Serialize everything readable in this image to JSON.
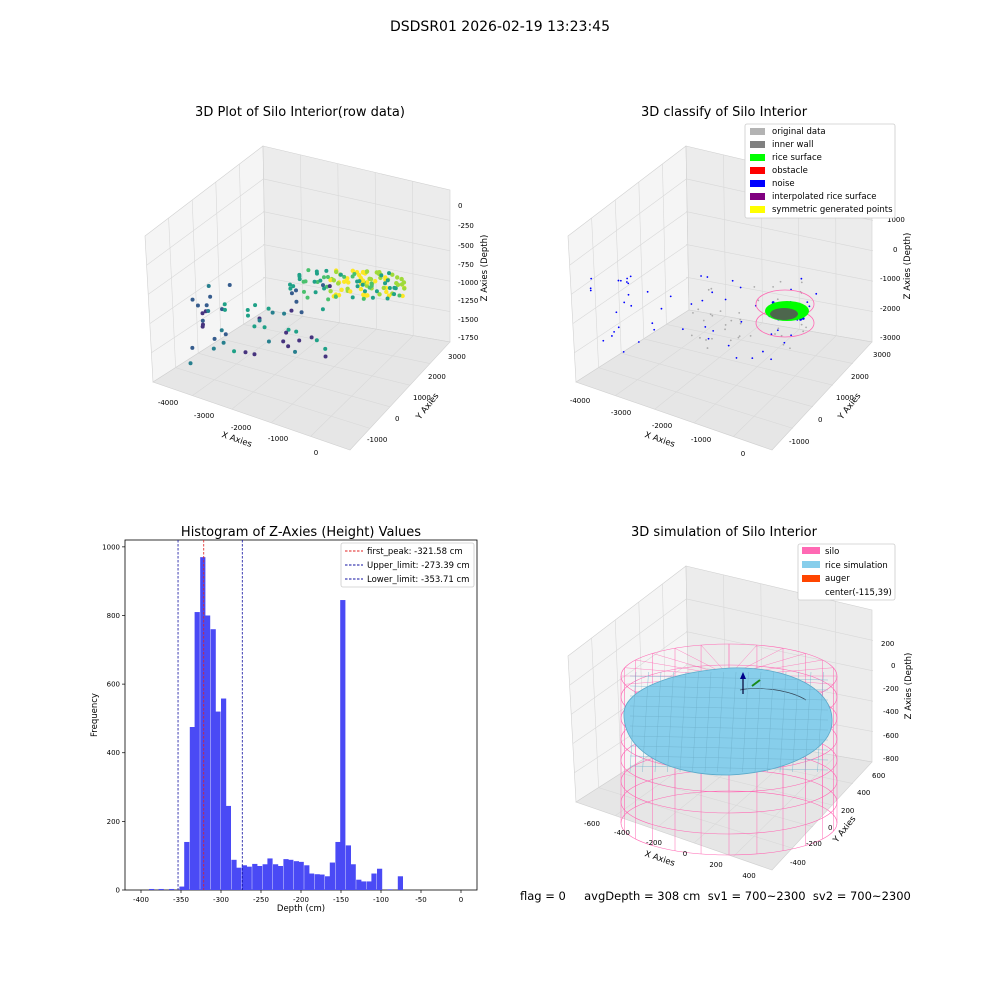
{
  "figure": {
    "title": "DSDSR01 2026-02-19 13:23:45",
    "status_text": "flag = 0     avgDepth = 308 cm  sv1 = 700~2300  sv2 = 700~2300"
  },
  "colors": {
    "hist_bar": "#4a4af5",
    "first_peak": "#e02020",
    "limits": "#1010a0",
    "pane": "#f2f2f2",
    "grid": "#d6d6d6",
    "silo": "#ff69b4",
    "rice": "#87ceeb",
    "auger": "#ff4500"
  },
  "chart_data": [
    {
      "type": "scatter",
      "subtype": "3d",
      "title": "3D Plot of Silo Interior(row data)",
      "xlabel": "X Axies",
      "ylabel": "Y Axies",
      "zlabel": "Z Axies (Depth)",
      "xticks": [
        "-4000",
        "-3000",
        "-2000",
        "-1000",
        "0"
      ],
      "yticks": [
        "-1000",
        "0",
        "1000",
        "2000",
        "3000"
      ],
      "zticks": [
        "0",
        "-250",
        "-500",
        "-750",
        "-1000",
        "-1250",
        "-1500",
        "-1750"
      ],
      "colormap": "viridis",
      "grid": true
    },
    {
      "type": "scatter",
      "subtype": "3d",
      "title": "3D classify of Silo Interior",
      "xlabel": "X Axies",
      "ylabel": "Y Axies",
      "zlabel": "Z Axies (Depth)",
      "xticks": [
        "-4000",
        "-3000",
        "-2000",
        "-1000",
        "0"
      ],
      "yticks": [
        "-1000",
        "0",
        "1000",
        "2000",
        "3000"
      ],
      "zticks": [
        "1000",
        "0",
        "-1000",
        "-2000",
        "-3000"
      ],
      "legend_position": "top-right",
      "legend": [
        {
          "label": "original data",
          "color": "#b3b3b3"
        },
        {
          "label": "inner wall",
          "color": "#808080"
        },
        {
          "label": "rice surface",
          "color": "#00ff00"
        },
        {
          "label": "obstacle",
          "color": "#ff0000"
        },
        {
          "label": "noise",
          "color": "#0000ff"
        },
        {
          "label": "interpolated rice surface",
          "color": "#800080"
        },
        {
          "label": "symmetric generated points",
          "color": "#ffff00"
        }
      ],
      "grid": true
    },
    {
      "type": "bar",
      "subtype": "histogram",
      "title": "Histogram of Z-Axies (Height) Values",
      "xlabel": "Depth (cm)",
      "ylabel": "Frequency",
      "xlim": [
        -420,
        20
      ],
      "ylim": [
        0,
        1020
      ],
      "xticks": [
        "-400",
        "-350",
        "-300",
        "-250",
        "-200",
        "-150",
        "-100",
        "-50",
        "0"
      ],
      "yticks": [
        "0",
        "200",
        "400",
        "600",
        "800",
        "1000"
      ],
      "bin_width": 6.5,
      "bins": [
        [
          -390,
          3
        ],
        [
          -384,
          0
        ],
        [
          -378,
          3
        ],
        [
          -372,
          0
        ],
        [
          -365,
          3
        ],
        [
          -359,
          0
        ],
        [
          -352,
          10
        ],
        [
          -346,
          140
        ],
        [
          -339,
          475
        ],
        [
          -333,
          810
        ],
        [
          -326,
          970
        ],
        [
          -320,
          800
        ],
        [
          -313,
          760
        ],
        [
          -307,
          520
        ],
        [
          -300,
          558
        ],
        [
          -294,
          245
        ],
        [
          -287,
          88
        ],
        [
          -281,
          65
        ],
        [
          -274,
          72
        ],
        [
          -268,
          68
        ],
        [
          -261,
          76
        ],
        [
          -255,
          70
        ],
        [
          -248,
          75
        ],
        [
          -242,
          92
        ],
        [
          -235,
          75
        ],
        [
          -229,
          70
        ],
        [
          -222,
          90
        ],
        [
          -216,
          88
        ],
        [
          -209,
          84
        ],
        [
          -203,
          82
        ],
        [
          -196,
          72
        ],
        [
          -190,
          48
        ],
        [
          -183,
          46
        ],
        [
          -177,
          45
        ],
        [
          -170,
          40
        ],
        [
          -164,
          80
        ],
        [
          -157,
          140
        ],
        [
          -151,
          845
        ],
        [
          -144,
          130
        ],
        [
          -138,
          75
        ],
        [
          -131,
          30
        ],
        [
          -125,
          25
        ],
        [
          -118,
          25
        ],
        [
          -112,
          48
        ],
        [
          -105,
          62
        ],
        [
          -92,
          2
        ],
        [
          -79,
          40
        ]
      ],
      "vlines": [
        {
          "name": "first_peak: -321.58 cm",
          "x": -321.58,
          "color": "#e02020"
        },
        {
          "name": "Upper_limit: -273.39 cm",
          "x": -273.39,
          "color": "#1010a0"
        },
        {
          "name": "Lower_limit: -353.71 cm",
          "x": -353.71,
          "color": "#1010a0"
        }
      ],
      "legend_position": "top-right",
      "grid": false
    },
    {
      "type": "scatter",
      "subtype": "3d-surface",
      "title": "3D simulation of Silo Interior",
      "xlabel": "X Axies",
      "ylabel": "Y Axies",
      "zlabel": "Z Axies (Depth)",
      "xticks": [
        "-600",
        "-400",
        "-200",
        "0",
        "200",
        "400"
      ],
      "yticks": [
        "-400",
        "-200",
        "0",
        "200",
        "400",
        "600"
      ],
      "zticks": [
        "200",
        "0",
        "-200",
        "-400",
        "-600",
        "-800"
      ],
      "legend_position": "top-right",
      "legend": [
        {
          "label": "silo",
          "color": "#ff69b4"
        },
        {
          "label": "rice simulation",
          "color": "#87ceeb"
        },
        {
          "label": "auger",
          "color": "#ff4500"
        },
        {
          "label": "center(-115,39)",
          "color": ""
        }
      ],
      "grid": true
    }
  ]
}
